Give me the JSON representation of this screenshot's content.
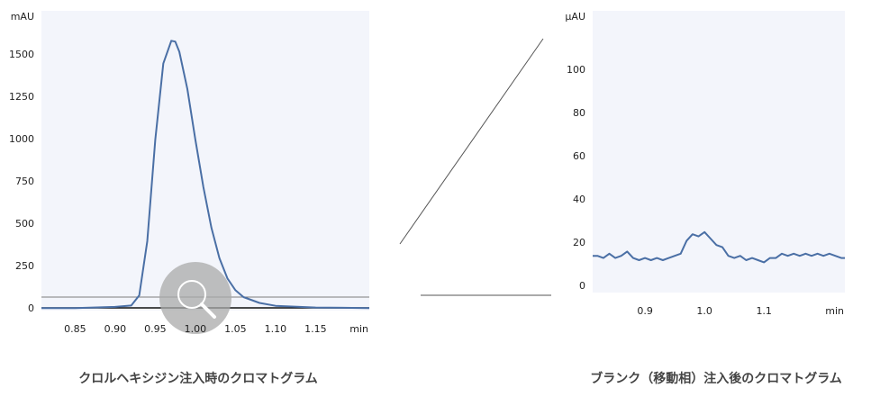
{
  "chart_data": [
    {
      "type": "line",
      "title": "クロルヘキシジン注入時のクロマトグラム",
      "y_label": "mAU",
      "x_label": "min",
      "color": "#4a6fa5",
      "x": [
        0.808,
        0.85,
        0.9,
        0.92,
        0.93,
        0.94,
        0.95,
        0.96,
        0.97,
        0.975,
        0.98,
        0.99,
        1.0,
        1.01,
        1.02,
        1.03,
        1.04,
        1.05,
        1.06,
        1.08,
        1.1,
        1.15,
        1.217
      ],
      "values": [
        5,
        5,
        12,
        20,
        80,
        400,
        1000,
        1450,
        1585,
        1580,
        1520,
        1300,
        1000,
        720,
        480,
        300,
        180,
        110,
        70,
        35,
        18,
        8,
        5
      ],
      "xlim": [
        0.808,
        1.217
      ],
      "ylim": [
        -10,
        1762
      ],
      "xticks": [
        0.85,
        {
          "value": 0.9,
          "label": "0.90"
        },
        0.95,
        {
          "value": 1.0,
          "label": "1.00"
        },
        1.05,
        {
          "value": 1.1,
          "label": "1.10"
        },
        1.15
      ],
      "yticks": [
        0,
        250,
        500,
        750,
        1000,
        1250,
        1500
      ]
    },
    {
      "type": "line",
      "title": "ブランク（移動相）注入後のクロマトグラム",
      "y_label": "μAU",
      "x_label": "min",
      "color": "#4a6fa5",
      "x": [
        0.812,
        0.82,
        0.83,
        0.84,
        0.85,
        0.86,
        0.87,
        0.88,
        0.89,
        0.9,
        0.91,
        0.92,
        0.93,
        0.94,
        0.95,
        0.96,
        0.97,
        0.98,
        0.99,
        1.0,
        1.01,
        1.02,
        1.03,
        1.04,
        1.05,
        1.06,
        1.07,
        1.08,
        1.09,
        1.1,
        1.11,
        1.12,
        1.13,
        1.14,
        1.15,
        1.16,
        1.17,
        1.18,
        1.19,
        1.2,
        1.21,
        1.22,
        1.23,
        1.236
      ],
      "values": [
        14,
        14,
        13,
        15,
        13,
        14,
        16,
        13,
        12,
        13,
        12,
        13,
        12,
        13,
        14,
        15,
        21,
        24,
        23,
        25,
        22,
        19,
        18,
        14,
        13,
        14,
        12,
        13,
        12,
        11,
        13,
        13,
        15,
        14,
        15,
        14,
        15,
        14,
        15,
        14,
        15,
        14,
        13,
        13
      ],
      "xlim": [
        0.812,
        1.236
      ],
      "ylim": [
        -3,
        127.5
      ],
      "xticks": [
        0.9,
        {
          "value": 1.0,
          "label": "1.0"
        },
        1.1
      ],
      "yticks": [
        0,
        20,
        40,
        60,
        80,
        100
      ]
    }
  ]
}
